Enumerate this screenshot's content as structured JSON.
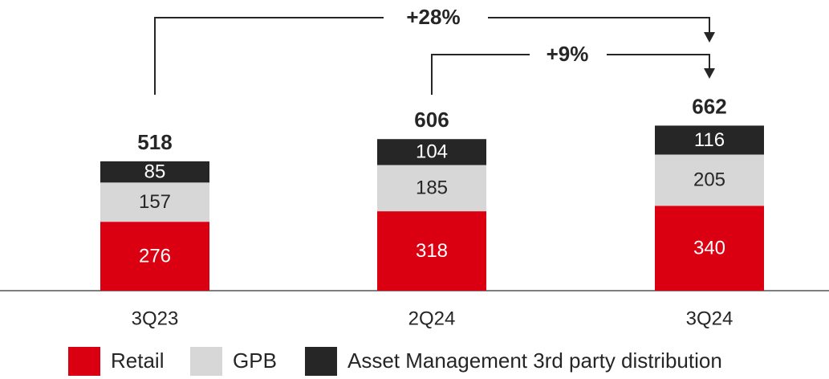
{
  "chart_data": {
    "type": "stacked_bar",
    "categories": [
      "3Q23",
      "2Q24",
      "3Q24"
    ],
    "series": [
      {
        "name": "Retail",
        "color": "#db0011",
        "values": [
          276,
          318,
          340
        ]
      },
      {
        "name": "GPB",
        "color": "#d7d7d7",
        "values": [
          157,
          185,
          205
        ]
      },
      {
        "name": "Asset Management 3rd party distribution",
        "color": "#262626",
        "values": [
          85,
          104,
          116
        ]
      }
    ],
    "totals": [
      518,
      606,
      662
    ],
    "annotations": [
      "+28%",
      "+9%"
    ],
    "legend": "bottom"
  }
}
